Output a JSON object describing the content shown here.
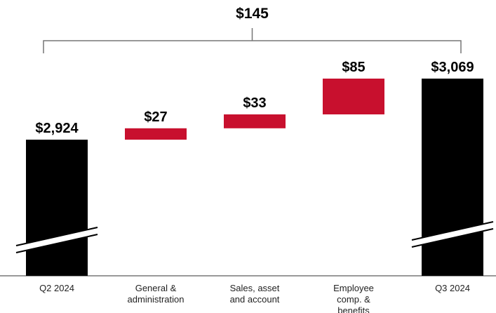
{
  "chart_data": {
    "type": "waterfall",
    "annotation": "$145",
    "categories": [
      "Q2 2024",
      "General & administration",
      "Sales, asset and account",
      "Employee comp. & benefits",
      "Q3 2024"
    ],
    "values": [
      2924,
      27,
      33,
      85,
      3069
    ],
    "value_labels": [
      "$2,924",
      "$27",
      "$33",
      "$85",
      "$3,069"
    ],
    "totals": [
      true,
      false,
      false,
      false,
      true
    ],
    "total_color": "#000000",
    "increase_color": "#c8102e",
    "broken_axis": true
  }
}
